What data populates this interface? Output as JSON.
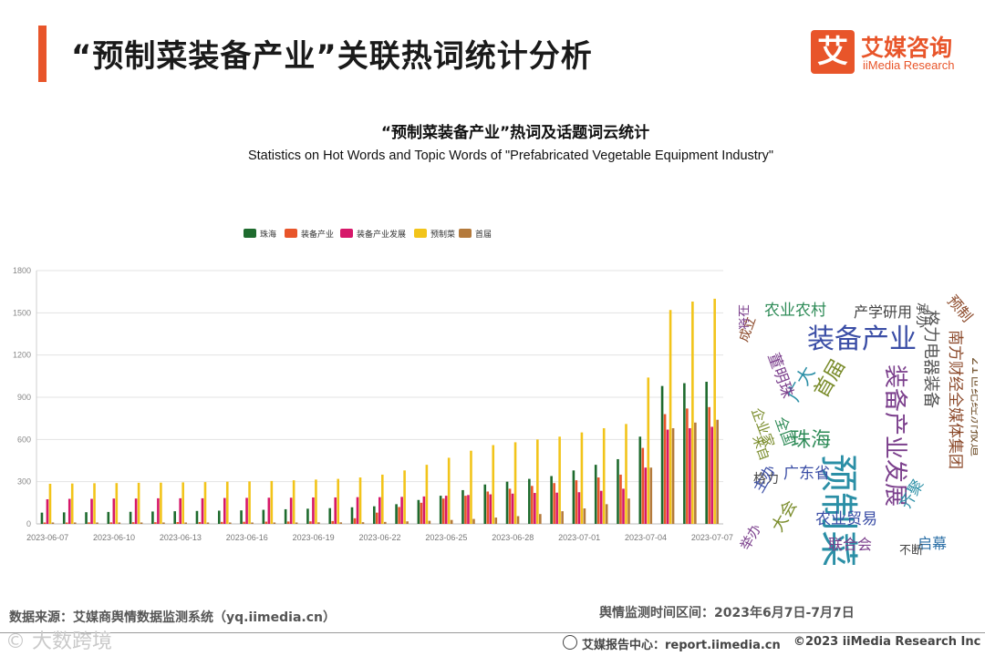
{
  "header": {
    "title": "“预制菜装备产业”关联热词统计分析",
    "logo_mark": "艾",
    "logo_cn": "艾媒咨询",
    "logo_en": "iiMedia Research",
    "accent_color": "#e8552a"
  },
  "chart_data": {
    "type": "bar",
    "title": "“预制菜装备产业”热词及话题词云统计",
    "subtitle": "Statistics on Hot Words and Topic Words of \"Prefabricated Vegetable Equipment Industry\"",
    "legend_position": "top-center",
    "ylim": [
      0,
      1800
    ],
    "yticks": [
      0,
      300,
      600,
      900,
      1200,
      1500,
      1800
    ],
    "xtick_labels": [
      "2023-06-07",
      "2023-06-10",
      "2023-06-13",
      "2023-06-16",
      "2023-06-19",
      "2023-06-22",
      "2023-06-25",
      "2023-06-28",
      "2023-07-01",
      "2023-07-04",
      "2023-07-07"
    ],
    "categories": [
      "06-07",
      "06-08",
      "06-09",
      "06-10",
      "06-11",
      "06-12",
      "06-13",
      "06-14",
      "06-15",
      "06-16",
      "06-17",
      "06-18",
      "06-19",
      "06-20",
      "06-21",
      "06-22",
      "06-23",
      "06-24",
      "06-25",
      "06-26",
      "06-27",
      "06-28",
      "06-29",
      "06-30",
      "07-01",
      "07-02",
      "07-03",
      "07-04",
      "07-05",
      "07-06",
      "07-07"
    ],
    "series": [
      {
        "name": "珠海",
        "color": "#1e6b2e",
        "values": [
          80,
          82,
          83,
          85,
          86,
          88,
          90,
          92,
          94,
          96,
          100,
          104,
          108,
          112,
          118,
          125,
          140,
          170,
          200,
          240,
          280,
          300,
          320,
          340,
          380,
          420,
          460,
          620,
          980,
          1000,
          1010
        ]
      },
      {
        "name": "装备产业",
        "color": "#e8552a",
        "values": [
          10,
          10,
          11,
          11,
          12,
          12,
          13,
          13,
          14,
          15,
          16,
          17,
          18,
          20,
          40,
          80,
          120,
          150,
          180,
          200,
          230,
          250,
          270,
          290,
          310,
          330,
          350,
          540,
          780,
          820,
          830
        ]
      },
      {
        "name": "装备产业发展",
        "color": "#d6186a",
        "values": [
          175,
          178,
          178,
          180,
          180,
          182,
          182,
          182,
          184,
          185,
          186,
          186,
          188,
          188,
          190,
          190,
          192,
          195,
          200,
          205,
          210,
          215,
          220,
          222,
          225,
          235,
          250,
          400,
          670,
          680,
          690
        ]
      },
      {
        "name": "预制菜",
        "color": "#f2c41a",
        "values": [
          285,
          287,
          289,
          290,
          292,
          293,
          295,
          297,
          300,
          302,
          305,
          310,
          315,
          320,
          330,
          350,
          380,
          420,
          470,
          520,
          560,
          580,
          600,
          620,
          650,
          680,
          710,
          1040,
          1520,
          1580,
          1600
        ]
      },
      {
        "name": "首届",
        "color": "#b47a3c",
        "values": [
          10,
          10,
          10,
          10,
          10,
          10,
          10,
          10,
          10,
          10,
          10,
          10,
          11,
          11,
          12,
          14,
          18,
          22,
          28,
          35,
          45,
          55,
          70,
          90,
          110,
          140,
          180,
          400,
          680,
          720,
          740
        ]
      }
    ]
  },
  "wordcloud": [
    {
      "text": "预制菜",
      "color": "#2b8fa6"
    },
    {
      "text": "装备产业",
      "color": "#3b4ea6"
    },
    {
      "text": "装备产业发展",
      "color": "#7b3f8c"
    },
    {
      "text": "格力电器装备",
      "color": "#555555"
    },
    {
      "text": "南方财经全媒体集团",
      "color": "#8c4a2b"
    },
    {
      "text": "21世纪经济报道",
      "color": "#7a5c3a"
    },
    {
      "text": "农业农村",
      "color": "#2e8b57"
    },
    {
      "text": "产学研用",
      "color": "#444444"
    },
    {
      "text": "珠海",
      "color": "#2e8b57"
    },
    {
      "text": "广东省",
      "color": "#3b4ea6"
    },
    {
      "text": "农业贸易",
      "color": "#3b4ea6"
    },
    {
      "text": "首届",
      "color": "#7a8c2b"
    },
    {
      "text": "广大",
      "color": "#2b8fa6"
    },
    {
      "text": "举办",
      "color": "#7b3f8c"
    },
    {
      "text": "大会",
      "color": "#7a8c2b"
    },
    {
      "text": "联合会",
      "color": "#7b3f8c"
    },
    {
      "text": "启幕",
      "color": "#2b6fa6"
    },
    {
      "text": "不断",
      "color": "#444444"
    },
    {
      "text": "格力",
      "color": "#444444"
    },
    {
      "text": "董明珠",
      "color": "#7b3f8c"
    },
    {
      "text": "成立",
      "color": "#8c4a2b"
    },
    {
      "text": "将在",
      "color": "#7b3f8c"
    },
    {
      "text": "承办",
      "color": "#444444"
    },
    {
      "text": "齐聚",
      "color": "#2b8fa6"
    },
    {
      "text": "企业家",
      "color": "#7a8c2b"
    },
    {
      "text": "主办",
      "color": "#3b4ea6"
    },
    {
      "text": "全国",
      "color": "#2e8b57"
    },
    {
      "text": "来自",
      "color": "#7a8c2b"
    },
    {
      "text": "预制",
      "color": "#8c4a2b"
    }
  ],
  "footer": {
    "source": "数据来源：艾媒商舆情数据监测系统（yq.iimedia.cn）",
    "period": "舆情监测时间区间：2023年6月7日-7月7日",
    "report_center": "艾媒报告中心：report.iimedia.cn",
    "copyright": "©2023  iiMedia Research  Inc",
    "watermark": "© 大数跨境"
  }
}
